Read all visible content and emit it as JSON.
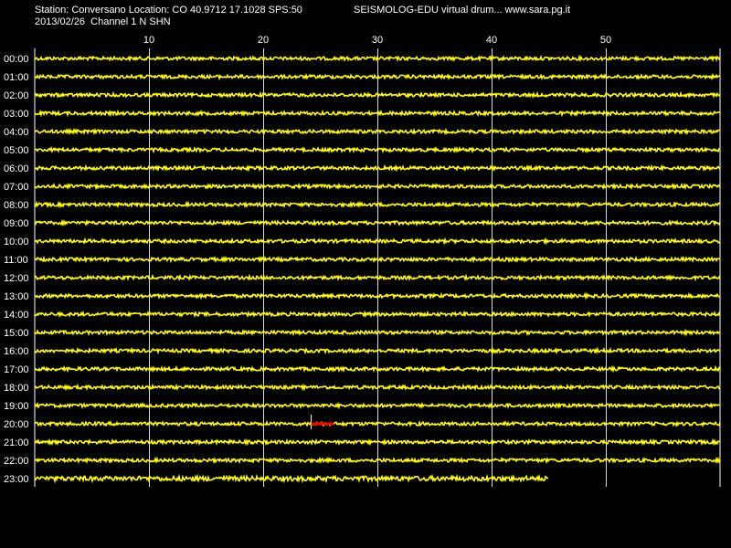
{
  "header": {
    "station_line": "Station: Conversano Location: CO 40.9712 17.1028 SPS:50",
    "app_line": "SEISMOLOG-EDU virtual drum... www.sara.pg.it",
    "date_line": "2013/02/26  Channel 1 N SHN"
  },
  "colors": {
    "background": "#000000",
    "trace": "#ffff00",
    "event": "#ff0000",
    "grid": "#ffffff",
    "text": "#ffffff"
  },
  "chart_data": {
    "type": "line",
    "title": "",
    "xlabel": "",
    "ylabel": "",
    "xlim": [
      0,
      60
    ],
    "x_ticks": [
      "10",
      "20",
      "30",
      "40",
      "50"
    ],
    "x_tick_values": [
      10,
      20,
      30,
      40,
      50
    ],
    "rows": [
      "00:00",
      "01:00",
      "02:00",
      "03:00",
      "04:00",
      "05:00",
      "06:00",
      "07:00",
      "08:00",
      "09:00",
      "10:00",
      "11:00",
      "12:00",
      "13:00",
      "14:00",
      "15:00",
      "16:00",
      "17:00",
      "18:00",
      "19:00",
      "20:00",
      "21:00",
      "22:00",
      "23:00"
    ],
    "last_row_end_minute": 45,
    "event": {
      "row": "20:00",
      "start_minute": 24.2,
      "end_minute": 26.2
    },
    "grid": true
  }
}
